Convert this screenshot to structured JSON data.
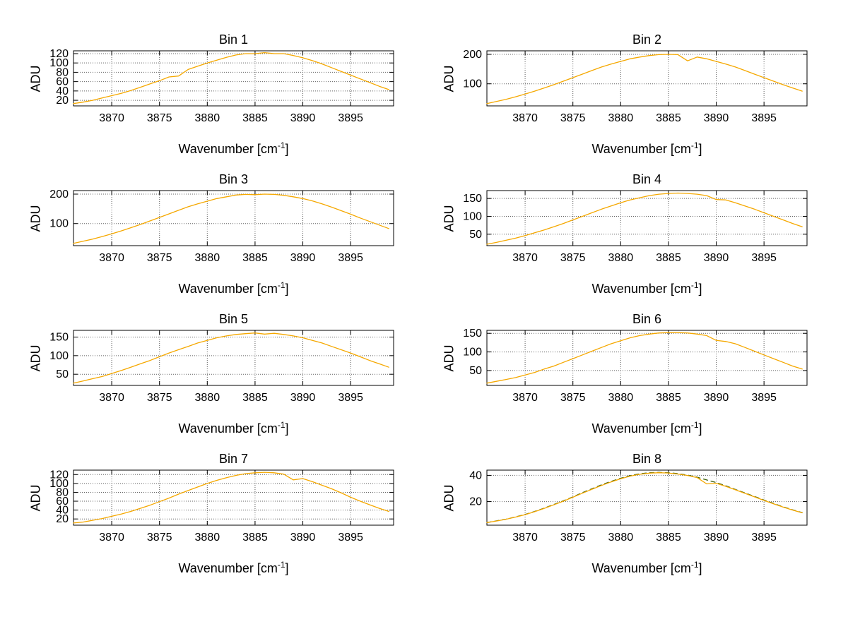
{
  "figure": {
    "background": "#ffffff",
    "axis_color": "#000000",
    "grid_color": "#606060",
    "main_line_color": "#f5a800",
    "secondary_line_color": "#3a5f0b"
  },
  "chart_data": [
    {
      "type": "line",
      "title": "Bin 1",
      "ylabel": "ADU",
      "xlabel_pre": "Wavenumber [cm",
      "xlabel_sup": "-1",
      "xlabel_post": "]",
      "xlim": [
        3866,
        3899.5
      ],
      "ylim": [
        8,
        126
      ],
      "xticks": [
        3870,
        3875,
        3880,
        3885,
        3890,
        3895
      ],
      "yticks": [
        20,
        40,
        60,
        80,
        100,
        120
      ],
      "grid": true,
      "x": [
        3866,
        3867,
        3868,
        3869,
        3870,
        3871,
        3872,
        3873,
        3874,
        3875,
        3876,
        3877,
        3878,
        3879,
        3880,
        3881,
        3882,
        3883,
        3884,
        3885,
        3886,
        3887,
        3888,
        3889,
        3890,
        3891,
        3892,
        3893,
        3894,
        3895,
        3896,
        3897,
        3898,
        3899
      ],
      "series": [
        {
          "name": "spectrum",
          "color": "#f5a800",
          "dash": false,
          "values": [
            13,
            16,
            20,
            25,
            30,
            35,
            41,
            48,
            55,
            62,
            70,
            72,
            86,
            93,
            100,
            106,
            112,
            117,
            120,
            120,
            122,
            120,
            120,
            116,
            111,
            105,
            98,
            90,
            82,
            74,
            66,
            58,
            50,
            43
          ]
        }
      ]
    },
    {
      "type": "line",
      "title": "Bin 2",
      "ylabel": "ADU",
      "xlabel_pre": "Wavenumber [cm",
      "xlabel_sup": "-1",
      "xlabel_post": "]",
      "xlim": [
        3866,
        3899.5
      ],
      "ylim": [
        25,
        212
      ],
      "xticks": [
        3870,
        3875,
        3880,
        3885,
        3890,
        3895
      ],
      "yticks": [
        100,
        200
      ],
      "grid": true,
      "x": [
        3866,
        3867,
        3868,
        3869,
        3870,
        3871,
        3872,
        3873,
        3874,
        3875,
        3876,
        3877,
        3878,
        3879,
        3880,
        3881,
        3882,
        3883,
        3884,
        3885,
        3886,
        3887,
        3888,
        3889,
        3890,
        3891,
        3892,
        3893,
        3894,
        3895,
        3896,
        3897,
        3898,
        3899
      ],
      "series": [
        {
          "name": "spectrum",
          "color": "#f5a800",
          "dash": false,
          "values": [
            33,
            40,
            47,
            56,
            65,
            75,
            86,
            97,
            109,
            121,
            133,
            145,
            157,
            167,
            176,
            185,
            191,
            196,
            199,
            200,
            199,
            178,
            191,
            185,
            176,
            167,
            157,
            145,
            133,
            121,
            109,
            97,
            86,
            75
          ]
        }
      ]
    },
    {
      "type": "line",
      "title": "Bin 3",
      "ylabel": "ADU",
      "xlabel_pre": "Wavenumber [cm",
      "xlabel_sup": "-1",
      "xlabel_post": "]",
      "xlim": [
        3866,
        3899.5
      ],
      "ylim": [
        25,
        212
      ],
      "xticks": [
        3870,
        3875,
        3880,
        3885,
        3890,
        3895
      ],
      "yticks": [
        100,
        200
      ],
      "grid": true,
      "x": [
        3866,
        3867,
        3868,
        3869,
        3870,
        3871,
        3872,
        3873,
        3874,
        3875,
        3876,
        3877,
        3878,
        3879,
        3880,
        3881,
        3882,
        3883,
        3884,
        3885,
        3886,
        3887,
        3888,
        3889,
        3890,
        3891,
        3892,
        3893,
        3894,
        3895,
        3896,
        3897,
        3898,
        3899
      ],
      "series": [
        {
          "name": "spectrum",
          "color": "#f5a800",
          "dash": false,
          "values": [
            33,
            40,
            47,
            56,
            65,
            75,
            86,
            97,
            109,
            121,
            133,
            145,
            157,
            167,
            176,
            185,
            191,
            197,
            199,
            198,
            200,
            199,
            196,
            191,
            185,
            177,
            167,
            156,
            144,
            132,
            119,
            107,
            95,
            83
          ]
        }
      ]
    },
    {
      "type": "line",
      "title": "Bin 4",
      "ylabel": "ADU",
      "xlabel_pre": "Wavenumber [cm",
      "xlabel_sup": "-1",
      "xlabel_post": "]",
      "xlim": [
        3866,
        3899.5
      ],
      "ylim": [
        18,
        172
      ],
      "xticks": [
        3870,
        3875,
        3880,
        3885,
        3890,
        3895
      ],
      "yticks": [
        50,
        100,
        150
      ],
      "grid": true,
      "x": [
        3866,
        3867,
        3868,
        3869,
        3870,
        3871,
        3872,
        3873,
        3874,
        3875,
        3876,
        3877,
        3878,
        3879,
        3880,
        3881,
        3882,
        3883,
        3884,
        3885,
        3886,
        3887,
        3888,
        3889,
        3890,
        3891,
        3892,
        3893,
        3894,
        3895,
        3896,
        3897,
        3898,
        3899
      ],
      "series": [
        {
          "name": "spectrum",
          "color": "#f5a800",
          "dash": false,
          "values": [
            22,
            27,
            33,
            39,
            46,
            54,
            62,
            71,
            80,
            90,
            100,
            110,
            120,
            129,
            138,
            146,
            152,
            158,
            162,
            164,
            165,
            164,
            162,
            158,
            147,
            146,
            138,
            129,
            120,
            110,
            100,
            90,
            80,
            71
          ]
        }
      ]
    },
    {
      "type": "line",
      "title": "Bin 5",
      "ylabel": "ADU",
      "xlabel_pre": "Wavenumber [cm",
      "xlabel_sup": "-1",
      "xlabel_post": "]",
      "xlim": [
        3866,
        3899.5
      ],
      "ylim": [
        20,
        168
      ],
      "xticks": [
        3870,
        3875,
        3880,
        3885,
        3890,
        3895
      ],
      "yticks": [
        50,
        100,
        150
      ],
      "grid": true,
      "x": [
        3866,
        3867,
        3868,
        3869,
        3870,
        3871,
        3872,
        3873,
        3874,
        3875,
        3876,
        3877,
        3878,
        3879,
        3880,
        3881,
        3882,
        3883,
        3884,
        3885,
        3886,
        3887,
        3888,
        3889,
        3890,
        3891,
        3892,
        3893,
        3894,
        3895,
        3896,
        3897,
        3898,
        3899
      ],
      "series": [
        {
          "name": "spectrum",
          "color": "#f5a800",
          "dash": false,
          "values": [
            26,
            32,
            38,
            44,
            52,
            60,
            69,
            78,
            87,
            97,
            107,
            116,
            125,
            134,
            141,
            148,
            153,
            157,
            159,
            161,
            158,
            160,
            157,
            153,
            148,
            141,
            134,
            125,
            116,
            107,
            97,
            87,
            78,
            69
          ]
        }
      ]
    },
    {
      "type": "line",
      "title": "Bin 6",
      "ylabel": "ADU",
      "xlabel_pre": "Wavenumber [cm",
      "xlabel_sup": "-1",
      "xlabel_post": "]",
      "xlim": [
        3866,
        3899.5
      ],
      "ylim": [
        10,
        158
      ],
      "xticks": [
        3870,
        3875,
        3880,
        3885,
        3890,
        3895
      ],
      "yticks": [
        50,
        100,
        150
      ],
      "grid": true,
      "x": [
        3866,
        3867,
        3868,
        3869,
        3870,
        3871,
        3872,
        3873,
        3874,
        3875,
        3876,
        3877,
        3878,
        3879,
        3880,
        3881,
        3882,
        3883,
        3884,
        3885,
        3886,
        3887,
        3888,
        3889,
        3890,
        3891,
        3892,
        3893,
        3894,
        3895,
        3896,
        3897,
        3898,
        3899
      ],
      "series": [
        {
          "name": "spectrum",
          "color": "#f5a800",
          "dash": false,
          "values": [
            16,
            21,
            26,
            31,
            38,
            45,
            54,
            62,
            72,
            82,
            92,
            102,
            112,
            122,
            130,
            138,
            144,
            148,
            151,
            152,
            152,
            151,
            148,
            144,
            131,
            128,
            122,
            112,
            102,
            92,
            82,
            72,
            62,
            54
          ]
        }
      ]
    },
    {
      "type": "line",
      "title": "Bin 7",
      "ylabel": "ADU",
      "xlabel_pre": "Wavenumber [cm",
      "xlabel_sup": "-1",
      "xlabel_post": "]",
      "xlim": [
        3866,
        3899.5
      ],
      "ylim": [
        6,
        130
      ],
      "xticks": [
        3870,
        3875,
        3880,
        3885,
        3890,
        3895
      ],
      "yticks": [
        20,
        40,
        60,
        80,
        100,
        120
      ],
      "grid": true,
      "x": [
        3866,
        3867,
        3868,
        3869,
        3870,
        3871,
        3872,
        3873,
        3874,
        3875,
        3876,
        3877,
        3878,
        3879,
        3880,
        3881,
        3882,
        3883,
        3884,
        3885,
        3886,
        3887,
        3888,
        3889,
        3890,
        3891,
        3892,
        3893,
        3894,
        3895,
        3896,
        3897,
        3898,
        3899
      ],
      "series": [
        {
          "name": "spectrum",
          "color": "#f5a800",
          "dash": false,
          "values": [
            11,
            13,
            17,
            21,
            26,
            31,
            37,
            44,
            51,
            59,
            67,
            76,
            84,
            92,
            100,
            107,
            113,
            118,
            122,
            124,
            125,
            124,
            121,
            108,
            111,
            104,
            96,
            88,
            79,
            69,
            60,
            52,
            44,
            37
          ]
        }
      ]
    },
    {
      "type": "line",
      "title": "Bin 8",
      "ylabel": "ADU",
      "xlabel_pre": "Wavenumber [cm",
      "xlabel_sup": "-1",
      "xlabel_post": "]",
      "xlim": [
        3866,
        3899.5
      ],
      "ylim": [
        2,
        44
      ],
      "xticks": [
        3870,
        3875,
        3880,
        3885,
        3890,
        3895
      ],
      "yticks": [
        20,
        40
      ],
      "grid": true,
      "x": [
        3866,
        3867,
        3868,
        3869,
        3870,
        3871,
        3872,
        3873,
        3874,
        3875,
        3876,
        3877,
        3878,
        3879,
        3880,
        3881,
        3882,
        3883,
        3884,
        3885,
        3886,
        3887,
        3888,
        3889,
        3890,
        3891,
        3892,
        3893,
        3894,
        3895,
        3896,
        3897,
        3898,
        3899
      ],
      "series": [
        {
          "name": "fit",
          "color": "#3a5f0b",
          "dash": true,
          "values": [
            4,
            5.3,
            6.6,
            8.3,
            10.2,
            12.5,
            15,
            17.8,
            20.6,
            23.6,
            26.8,
            29.8,
            32.8,
            35.4,
            37.8,
            39.8,
            41.2,
            42,
            42.3,
            42,
            41.3,
            40.2,
            38.6,
            36.5,
            34.5,
            32,
            29.3,
            26.6,
            23.9,
            21.2,
            18.6,
            16,
            13.7,
            11.6
          ]
        },
        {
          "name": "spectrum",
          "color": "#f5a800",
          "dash": false,
          "values": [
            4,
            5.2,
            6.5,
            8.2,
            10,
            12.3,
            14.8,
            17.5,
            20.3,
            23.3,
            26.4,
            29.4,
            32.3,
            35,
            37.4,
            39.4,
            40.8,
            41.7,
            42,
            41.8,
            41,
            39.9,
            38.3,
            33.5,
            34,
            31.6,
            29,
            26.3,
            23.6,
            20.9,
            18.3,
            15.8,
            13.5,
            11.4
          ]
        }
      ]
    }
  ]
}
